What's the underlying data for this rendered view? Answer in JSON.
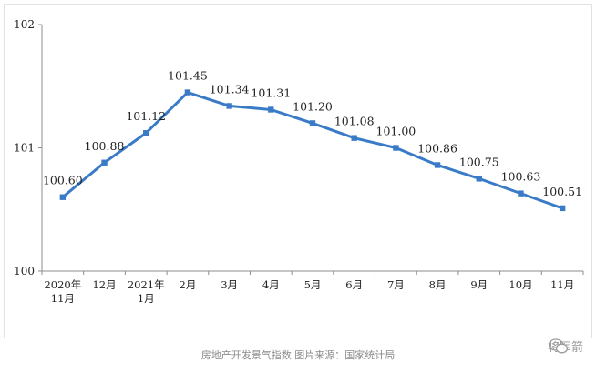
{
  "chart_data": {
    "type": "line",
    "title": "",
    "xlabel": "",
    "ylabel": "",
    "categories": [
      "2020年\n11月",
      "12月",
      "2021年\n1月",
      "2月",
      "3月",
      "4月",
      "5月",
      "6月",
      "7月",
      "8月",
      "9月",
      "10月",
      "11月"
    ],
    "series": [
      {
        "values": [
          100.6,
          100.88,
          101.12,
          101.45,
          101.34,
          101.31,
          101.2,
          101.08,
          101.0,
          100.86,
          100.75,
          100.63,
          100.51
        ]
      }
    ],
    "data_labels": [
      "100.60",
      "100.88",
      "101.12",
      "101.45",
      "101.34",
      "101.31",
      "101.20",
      "101.08",
      "101.00",
      "100.86",
      "100.75",
      "100.63",
      "100.51"
    ],
    "ylim": [
      100,
      102
    ],
    "yticks": [
      100,
      101,
      102
    ],
    "ytick_labels": [
      "100",
      "101",
      "102"
    ],
    "grid": false,
    "line_color": "#3a7bc8"
  },
  "caption": "房地产开发景气指数 图片来源：国家统计局",
  "watermark": {
    "text": "将军箭",
    "icon": "wechat-icon"
  }
}
